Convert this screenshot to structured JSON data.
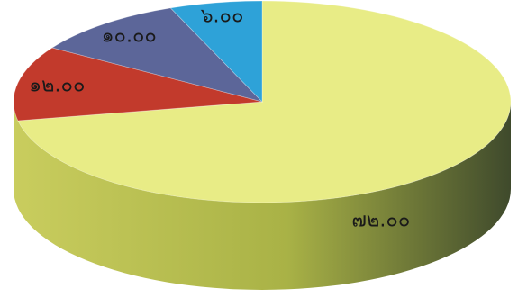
{
  "chart_data": {
    "type": "pie",
    "style": "3d",
    "legend": "none",
    "slices": [
      {
        "value": 72,
        "label": "๗๒.๐๐",
        "color": "#e8ec86"
      },
      {
        "value": 12,
        "label": "๑๒.๐๐",
        "color": "#c23a2c"
      },
      {
        "value": 10,
        "label": "๑๐.๐๐",
        "color": "#5c6699"
      },
      {
        "value": 6,
        "label": "๖.๐๐",
        "color": "#2ea2d8"
      }
    ]
  }
}
